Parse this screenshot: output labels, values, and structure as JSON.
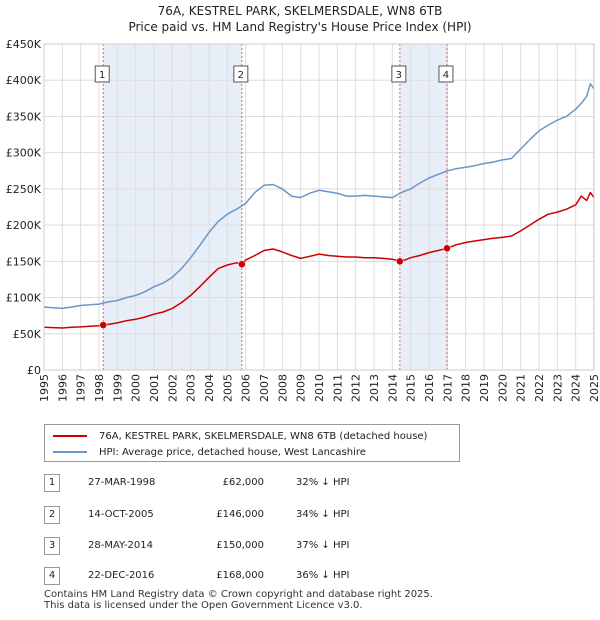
{
  "colors": {
    "property": "#cc0000",
    "hpi": "#6a96c8",
    "shade": "#e8eef8",
    "grid": "#dddddd",
    "vline": "#e06666"
  },
  "title": {
    "line1": "76A, KESTREL PARK, SKELMERSDALE, WN8 6TB",
    "line2": "Price paid vs. HM Land Registry's House Price Index (HPI)"
  },
  "legend": {
    "property_label": "76A, KESTREL PARK, SKELMERSDALE, WN8 6TB (detached house)",
    "hpi_label": "HPI: Average price, detached house, West Lancashire"
  },
  "transactions": [
    {
      "num": "1",
      "date": "27-MAR-1998",
      "price": "£62,000",
      "hpi": "32% ↓ HPI"
    },
    {
      "num": "2",
      "date": "14-OCT-2005",
      "price": "£146,000",
      "hpi": "34% ↓ HPI"
    },
    {
      "num": "3",
      "date": "28-MAY-2014",
      "price": "£150,000",
      "hpi": "37% ↓ HPI"
    },
    {
      "num": "4",
      "date": "22-DEC-2016",
      "price": "£168,000",
      "hpi": "36% ↓ HPI"
    }
  ],
  "footer": {
    "line1": "Contains HM Land Registry data © Crown copyright and database right 2025.",
    "line2": "This data is licensed under the Open Government Licence v3.0."
  },
  "chart_data": {
    "type": "line",
    "title": "Price paid vs. HM Land Registry's House Price Index (HPI)",
    "xlim": [
      1995,
      2025
    ],
    "ylim": [
      0,
      450000
    ],
    "x_ticks": [
      "1995",
      "1996",
      "1997",
      "1998",
      "1999",
      "2000",
      "2001",
      "2002",
      "2003",
      "2004",
      "2005",
      "2006",
      "2007",
      "2008",
      "2009",
      "2010",
      "2011",
      "2012",
      "2013",
      "2014",
      "2015",
      "2016",
      "2017",
      "2018",
      "2019",
      "2020",
      "2021",
      "2022",
      "2023",
      "2024",
      "2025"
    ],
    "y_ticks": [
      {
        "value": 0,
        "label": "£0"
      },
      {
        "value": 50000,
        "label": "£50K"
      },
      {
        "value": 100000,
        "label": "£100K"
      },
      {
        "value": 150000,
        "label": "£150K"
      },
      {
        "value": 200000,
        "label": "£200K"
      },
      {
        "value": 250000,
        "label": "£250K"
      },
      {
        "value": 300000,
        "label": "£300K"
      },
      {
        "value": 350000,
        "label": "£350K"
      },
      {
        "value": 400000,
        "label": "£400K"
      },
      {
        "value": 450000,
        "label": "£450K"
      }
    ],
    "shaded_periods": [
      [
        1998.23,
        2005.79
      ],
      [
        2014.41,
        2016.98
      ]
    ],
    "series": [
      {
        "name": "76A, KESTREL PARK, SKELMERSDALE, WN8 6TB (detached house)",
        "color": "#cc0000",
        "x": [
          1995,
          1995.5,
          1996,
          1996.5,
          1997,
          1997.5,
          1998,
          1998.23,
          1998.5,
          1999,
          1999.5,
          2000,
          2000.5,
          2001,
          2001.5,
          2002,
          2002.5,
          2003,
          2003.5,
          2004,
          2004.5,
          2005,
          2005.5,
          2005.79,
          2006,
          2006.5,
          2007,
          2007.5,
          2008,
          2008.5,
          2009,
          2009.5,
          2010,
          2010.5,
          2011,
          2011.5,
          2012,
          2012.5,
          2013,
          2013.5,
          2014,
          2014.41,
          2014.7,
          2015,
          2015.5,
          2016,
          2016.5,
          2016.98,
          2017.5,
          2018,
          2018.5,
          2019,
          2019.5,
          2020,
          2020.5,
          2021,
          2021.5,
          2022,
          2022.5,
          2023,
          2023.5,
          2024,
          2024.3,
          2024.6,
          2024.8,
          2025
        ],
        "y": [
          59000,
          58500,
          58000,
          59000,
          59500,
          60500,
          61000,
          62000,
          63000,
          65000,
          68000,
          70000,
          73000,
          77000,
          80000,
          85000,
          93000,
          103000,
          115000,
          128000,
          140000,
          145000,
          148000,
          146000,
          152000,
          158000,
          165000,
          167000,
          163000,
          158000,
          154000,
          157000,
          160000,
          158000,
          157000,
          156000,
          156000,
          155000,
          155000,
          154000,
          153000,
          150000,
          152000,
          155000,
          158000,
          162000,
          165000,
          168000,
          173000,
          176000,
          178000,
          180000,
          182000,
          183000,
          185000,
          192000,
          200000,
          208000,
          215000,
          218000,
          222000,
          228000,
          240000,
          234000,
          245000,
          238000
        ]
      },
      {
        "name": "HPI: Average price, detached house, West Lancashire",
        "color": "#6a96c8",
        "x": [
          1995,
          1995.5,
          1996,
          1996.5,
          1997,
          1997.5,
          1998,
          1998.5,
          1999,
          1999.5,
          2000,
          2000.5,
          2001,
          2001.5,
          2002,
          2002.5,
          2003,
          2003.5,
          2004,
          2004.5,
          2005,
          2005.5,
          2006,
          2006.5,
          2007,
          2007.5,
          2008,
          2008.5,
          2009,
          2009.5,
          2010,
          2010.5,
          2011,
          2011.5,
          2012,
          2012.5,
          2013,
          2013.5,
          2014,
          2014.5,
          2015,
          2015.5,
          2016,
          2016.5,
          2017,
          2017.5,
          2018,
          2018.5,
          2019,
          2019.5,
          2020,
          2020.5,
          2021,
          2021.5,
          2022,
          2022.5,
          2023,
          2023.5,
          2024,
          2024.3,
          2024.6,
          2024.8,
          2025
        ],
        "y": [
          87000,
          86000,
          85000,
          87000,
          89000,
          90000,
          91000,
          94000,
          96000,
          100000,
          103000,
          108000,
          115000,
          120000,
          128000,
          140000,
          155000,
          172000,
          190000,
          205000,
          215000,
          222000,
          230000,
          245000,
          255000,
          256000,
          250000,
          240000,
          238000,
          244000,
          248000,
          246000,
          244000,
          240000,
          240000,
          241000,
          240000,
          239000,
          238000,
          245000,
          250000,
          258000,
          265000,
          270000,
          275000,
          278000,
          280000,
          282000,
          285000,
          287000,
          290000,
          292000,
          305000,
          318000,
          330000,
          338000,
          345000,
          350000,
          360000,
          368000,
          378000,
          395000,
          388000
        ]
      }
    ],
    "sales": [
      {
        "label": "1",
        "x": 1998.23,
        "y": 62000
      },
      {
        "label": "2",
        "x": 2005.79,
        "y": 146000
      },
      {
        "label": "3",
        "x": 2014.41,
        "y": 150000
      },
      {
        "label": "4",
        "x": 2016.98,
        "y": 168000
      }
    ]
  }
}
